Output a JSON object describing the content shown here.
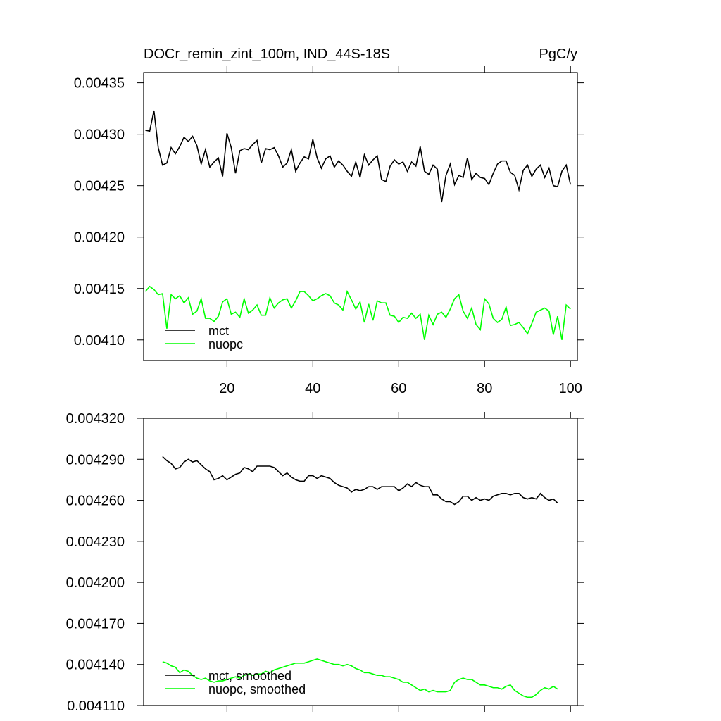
{
  "chart_data": [
    {
      "type": "line",
      "title": "DOCr_remin_zint_100m, IND_44S-18S",
      "units": "PgC/y",
      "x": [
        1,
        2,
        3,
        4,
        5,
        6,
        7,
        8,
        9,
        10,
        11,
        12,
        13,
        14,
        15,
        16,
        17,
        18,
        19,
        20,
        21,
        22,
        23,
        24,
        25,
        26,
        27,
        28,
        29,
        30,
        31,
        32,
        33,
        34,
        35,
        36,
        37,
        38,
        39,
        40,
        41,
        42,
        43,
        44,
        45,
        46,
        47,
        48,
        49,
        50,
        51,
        52,
        53,
        54,
        55,
        56,
        57,
        58,
        59,
        60,
        61,
        62,
        63,
        64,
        65,
        66,
        67,
        68,
        69,
        70,
        71,
        72,
        73,
        74,
        75,
        76,
        77,
        78,
        79,
        80,
        81,
        82,
        83,
        84,
        85,
        86,
        87,
        88,
        89,
        90,
        91,
        92,
        93,
        94,
        95,
        96,
        97,
        98,
        99,
        100
      ],
      "series": [
        {
          "name": "mct",
          "color": "#000000",
          "values": [
            0.004304,
            0.004303,
            0.004323,
            0.004287,
            0.00427,
            0.004272,
            0.004287,
            0.004281,
            0.004288,
            0.004297,
            0.004293,
            0.004298,
            0.004289,
            0.004271,
            0.004285,
            0.004268,
            0.004273,
            0.004277,
            0.004259,
            0.004301,
            0.004287,
            0.004262,
            0.004284,
            0.004286,
            0.004285,
            0.00429,
            0.004294,
            0.004272,
            0.004286,
            0.004285,
            0.004287,
            0.004279,
            0.004268,
            0.004272,
            0.004285,
            0.004264,
            0.004272,
            0.004278,
            0.004276,
            0.004295,
            0.004277,
            0.004267,
            0.004276,
            0.004279,
            0.004268,
            0.004274,
            0.00427,
            0.004264,
            0.004259,
            0.004273,
            0.004258,
            0.00428,
            0.00427,
            0.004275,
            0.004279,
            0.004256,
            0.004254,
            0.004269,
            0.004275,
            0.004271,
            0.004273,
            0.004264,
            0.004273,
            0.004269,
            0.004288,
            0.004264,
            0.004261,
            0.00427,
            0.004266,
            0.004234,
            0.00426,
            0.004271,
            0.004251,
            0.00426,
            0.004258,
            0.004277,
            0.004256,
            0.004262,
            0.004258,
            0.004257,
            0.004251,
            0.004262,
            0.004271,
            0.004274,
            0.004274,
            0.004263,
            0.00426,
            0.004246,
            0.004265,
            0.00427,
            0.004259,
            0.004266,
            0.00427,
            0.004258,
            0.004267,
            0.00425,
            0.004249,
            0.004264,
            0.00427,
            0.004251
          ]
        },
        {
          "name": "nuopc",
          "color": "#00ff00",
          "values": [
            0.004147,
            0.004152,
            0.004149,
            0.004144,
            0.004145,
            0.004111,
            0.004144,
            0.00414,
            0.004143,
            0.004136,
            0.004141,
            0.004125,
            0.004128,
            0.00414,
            0.004121,
            0.004121,
            0.004118,
            0.004123,
            0.004137,
            0.00414,
            0.004125,
            0.004127,
            0.004122,
            0.00414,
            0.004126,
            0.004129,
            0.004134,
            0.004124,
            0.004124,
            0.004141,
            0.004131,
            0.004136,
            0.004139,
            0.00414,
            0.004131,
            0.004138,
            0.004147,
            0.004147,
            0.004143,
            0.004138,
            0.00414,
            0.004143,
            0.004145,
            0.004143,
            0.004136,
            0.004134,
            0.004129,
            0.004147,
            0.004139,
            0.00413,
            0.004137,
            0.004117,
            0.004135,
            0.004119,
            0.004138,
            0.004136,
            0.004136,
            0.004124,
            0.004123,
            0.004117,
            0.004122,
            0.004121,
            0.004126,
            0.004121,
            0.004125,
            0.0041,
            0.004124,
            0.004115,
            0.004125,
            0.004127,
            0.004122,
            0.00413,
            0.00414,
            0.004144,
            0.004128,
            0.004121,
            0.004131,
            0.004115,
            0.00411,
            0.00414,
            0.004135,
            0.004121,
            0.004117,
            0.00412,
            0.004132,
            0.004114,
            0.004115,
            0.004117,
            0.004112,
            0.004106,
            0.004116,
            0.004127,
            0.004129,
            0.004131,
            0.004128,
            0.004105,
            0.004123,
            0.0041,
            0.004134,
            0.00413
          ]
        }
      ],
      "xlim": [
        0.6,
        101.6
      ],
      "xticks": [
        20,
        40,
        60,
        80,
        100
      ],
      "xticklabels": true,
      "ylim": [
        0.00408,
        0.00436
      ],
      "yticks": [
        {
          "value": 0.0041,
          "label": "0.00410"
        },
        0.00415,
        {
          "value": 0.0042,
          "label": "0.00420"
        },
        0.00425,
        {
          "value": 0.0043,
          "label": "0.00430"
        },
        0.00435
      ],
      "legend": "lower left"
    },
    {
      "type": "line",
      "x": [
        5,
        6,
        7,
        8,
        9,
        10,
        11,
        12,
        13,
        14,
        15,
        16,
        17,
        18,
        19,
        20,
        21,
        22,
        23,
        24,
        25,
        26,
        27,
        28,
        29,
        30,
        31,
        32,
        33,
        34,
        35,
        36,
        37,
        38,
        39,
        40,
        41,
        42,
        43,
        44,
        45,
        46,
        47,
        48,
        49,
        50,
        51,
        52,
        53,
        54,
        55,
        56,
        57,
        58,
        59,
        60,
        61,
        62,
        63,
        64,
        65,
        66,
        67,
        68,
        69,
        70,
        71,
        72,
        73,
        74,
        75,
        76,
        77,
        78,
        79,
        80,
        81,
        82,
        83,
        84,
        85,
        86,
        87,
        88,
        89,
        90,
        91,
        92,
        93,
        94,
        95,
        96,
        97
      ],
      "series": [
        {
          "name": "mct, smoothed",
          "color": "#000000",
          "values": [
            0.004292,
            0.004289,
            0.004287,
            0.004283,
            0.004284,
            0.004288,
            0.00429,
            0.004288,
            0.004289,
            0.004286,
            0.004283,
            0.004281,
            0.004275,
            0.004276,
            0.004278,
            0.004275,
            0.004277,
            0.004279,
            0.00428,
            0.004284,
            0.004283,
            0.004281,
            0.004285,
            0.004285,
            0.004285,
            0.004285,
            0.004284,
            0.004281,
            0.004278,
            0.00428,
            0.004277,
            0.004275,
            0.004274,
            0.004274,
            0.004278,
            0.004278,
            0.004276,
            0.004278,
            0.004277,
            0.004276,
            0.004273,
            0.004271,
            0.00427,
            0.004269,
            0.004266,
            0.004268,
            0.004267,
            0.004268,
            0.00427,
            0.00427,
            0.004268,
            0.00427,
            0.00427,
            0.00427,
            0.00427,
            0.004267,
            0.004269,
            0.004272,
            0.00427,
            0.004273,
            0.004271,
            0.00427,
            0.00427,
            0.004264,
            0.004264,
            0.004261,
            0.004259,
            0.004259,
            0.004257,
            0.004259,
            0.004263,
            0.004263,
            0.00426,
            0.004262,
            0.00426,
            0.004261,
            0.00426,
            0.004263,
            0.004264,
            0.004265,
            0.004265,
            0.004264,
            0.004265,
            0.004265,
            0.004262,
            0.004261,
            0.004262,
            0.004261,
            0.004265,
            0.004262,
            0.00426,
            0.004261,
            0.004258
          ]
        },
        {
          "name": "nuopc, smoothed",
          "color": "#00ff00",
          "values": [
            0.004142,
            0.004141,
            0.004139,
            0.004138,
            0.004134,
            0.004136,
            0.004135,
            0.004132,
            0.00413,
            0.004129,
            0.00413,
            0.004128,
            0.004127,
            0.004128,
            0.004128,
            0.004129,
            0.00413,
            0.004131,
            0.00413,
            0.004132,
            0.004133,
            0.004132,
            0.004133,
            0.004133,
            0.004135,
            0.004134,
            0.004136,
            0.004137,
            0.004138,
            0.004139,
            0.00414,
            0.004141,
            0.004141,
            0.004141,
            0.004142,
            0.004143,
            0.004144,
            0.004143,
            0.004142,
            0.004141,
            0.00414,
            0.00414,
            0.004139,
            0.00414,
            0.004139,
            0.004137,
            0.004136,
            0.004134,
            0.004134,
            0.004133,
            0.004132,
            0.004132,
            0.004131,
            0.004131,
            0.00413,
            0.004129,
            0.004127,
            0.004127,
            0.004125,
            0.004123,
            0.004121,
            0.004122,
            0.00412,
            0.004121,
            0.00412,
            0.00412,
            0.00412,
            0.004121,
            0.004127,
            0.004129,
            0.00413,
            0.004129,
            0.004129,
            0.004127,
            0.004125,
            0.004125,
            0.004124,
            0.004123,
            0.004123,
            0.004122,
            0.004124,
            0.004125,
            0.004121,
            0.004119,
            0.004117,
            0.004116,
            0.004116,
            0.004118,
            0.004121,
            0.004123,
            0.004122,
            0.004124,
            0.004122
          ]
        }
      ],
      "xlim": [
        0.6,
        101.6
      ],
      "xticks": [
        20,
        40,
        60,
        80,
        100
      ],
      "xticklabels": false,
      "ylim": [
        0.00411,
        0.00432
      ],
      "yticks": [
        {
          "value": 0.00411,
          "label": "0.004110"
        },
        {
          "value": 0.00414,
          "label": "0.004140"
        },
        {
          "value": 0.00417,
          "label": "0.004170"
        },
        {
          "value": 0.0042,
          "label": "0.004200"
        },
        {
          "value": 0.00423,
          "label": "0.004230"
        },
        {
          "value": 0.00426,
          "label": "0.004260"
        },
        {
          "value": 0.00429,
          "label": "0.004290"
        },
        {
          "value": 0.00432,
          "label": "0.004320"
        }
      ],
      "legend": "lower left"
    }
  ]
}
